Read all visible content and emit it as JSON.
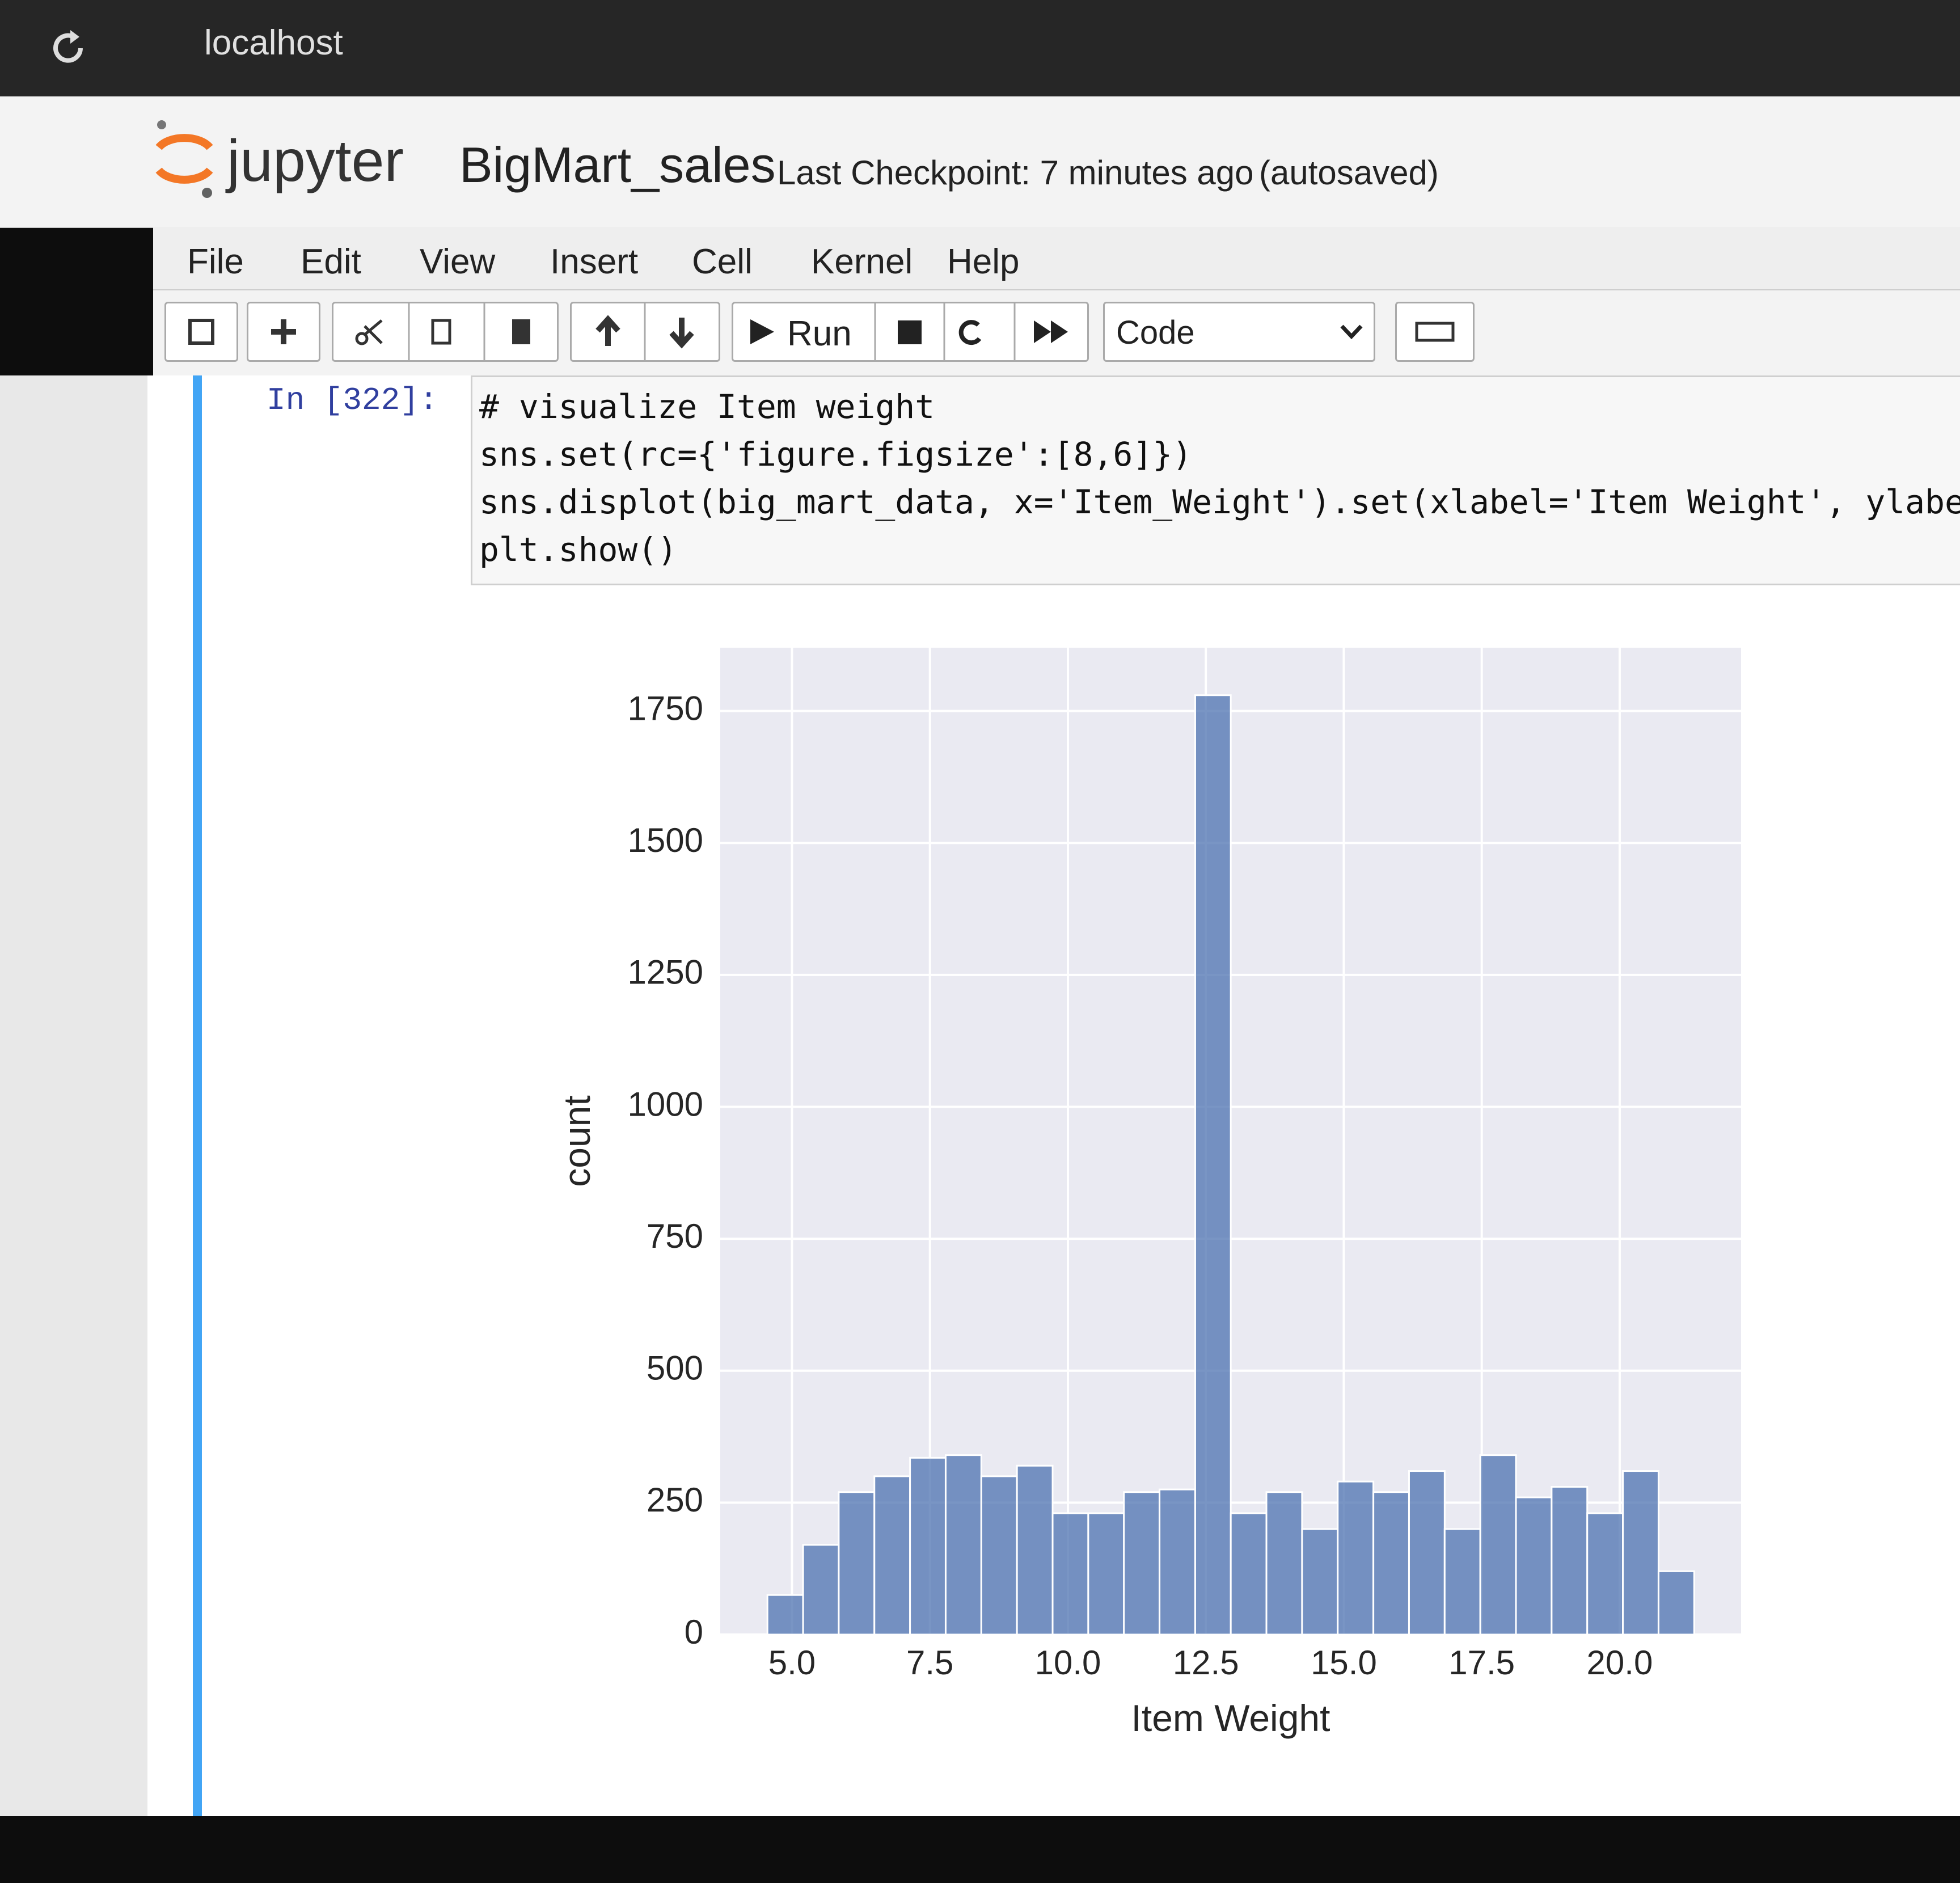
{
  "browser": {
    "url": "localhost"
  },
  "header": {
    "logo": "jupyter",
    "notebook": "BigMart_sales",
    "checkpoint": "Last Checkpoint: 7 minutes ago",
    "autosave": "(autosaved)"
  },
  "menu": [
    "File",
    "Edit",
    "View",
    "Insert",
    "Cell",
    "Kernel",
    "Help"
  ],
  "toolbar": {
    "run": "Run",
    "cell_type": "Code"
  },
  "cell": {
    "prompt": "In [322]:",
    "code": [
      "# visualize Item weight",
      "sns.set(rc={'figure.figsize':[8,6]})",
      "sns.displot(big_mart_data, x='Item_Weight').set(xlabel='Item Weight', ylabel='",
      "plt.show()"
    ]
  },
  "chart_data": {
    "type": "histogram",
    "x_label": "Item Weight",
    "y_label": "count",
    "bins": [
      4.555,
      5.201,
      5.847,
      6.493,
      7.139,
      7.785,
      8.431,
      9.077,
      9.723,
      10.369,
      11.015,
      11.661,
      12.307,
      12.952,
      13.598,
      14.244,
      14.89,
      15.536,
      16.182,
      16.828,
      17.474,
      18.12,
      18.766,
      19.412,
      20.058,
      20.704,
      21.35
    ],
    "values": [
      75,
      170,
      270,
      300,
      335,
      340,
      300,
      320,
      230,
      230,
      270,
      275,
      1780,
      230,
      270,
      200,
      290,
      270,
      310,
      200,
      340,
      260,
      280,
      230,
      310,
      120
    ],
    "color": "#4c72b0",
    "xlim": [
      3.7,
      22.2
    ],
    "ylim": [
      0,
      1870
    ],
    "xticks": [
      {
        "value": 5,
        "label": "5.0"
      },
      {
        "value": 7.5,
        "label": "7.5"
      },
      {
        "value": 10,
        "label": "10.0"
      },
      {
        "value": 12.5,
        "label": "12.5"
      },
      {
        "value": 15,
        "label": "15.0"
      },
      {
        "value": 17.5,
        "label": "17.5"
      },
      {
        "value": 20,
        "label": "20.0"
      }
    ],
    "yticks": [
      0,
      250,
      500,
      750,
      1000,
      1250,
      1500,
      1750
    ],
    "grid": true
  }
}
